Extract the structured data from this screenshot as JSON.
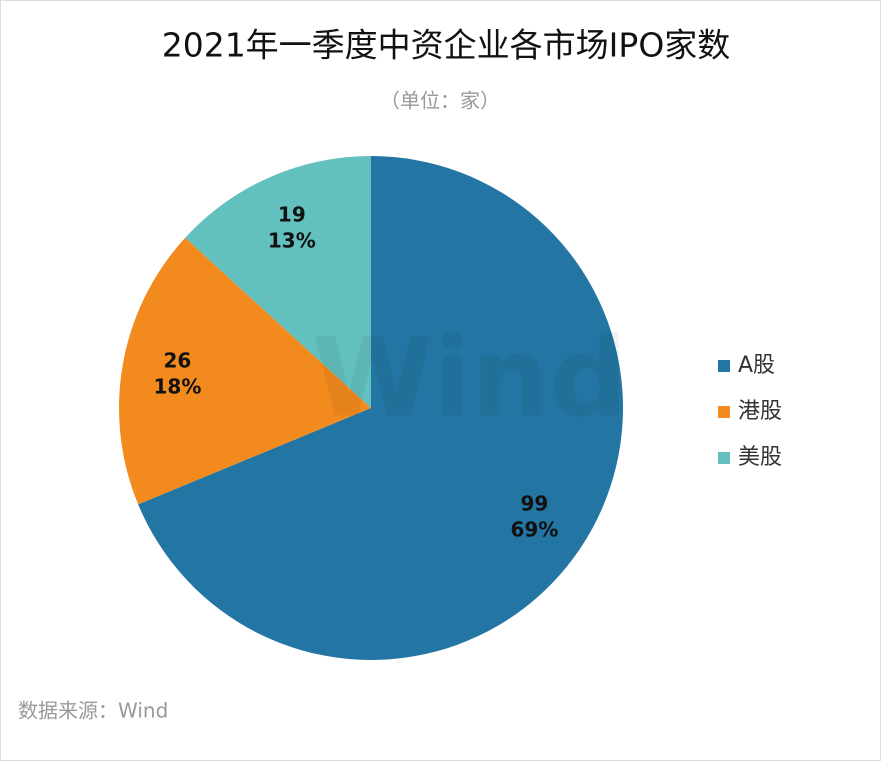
{
  "chart_data": {
    "type": "pie",
    "title": "2021年一季度中资企业各市场IPO家数",
    "subtitle": "（单位：家）",
    "categories": [
      "A股",
      "港股",
      "美股"
    ],
    "values": [
      99,
      26,
      19
    ],
    "percent_labels": [
      "69%",
      "18%",
      "13%"
    ],
    "colors": [
      "#2376a3",
      "#f28a1e",
      "#62c0be"
    ],
    "legend": "right",
    "watermark": "Wind",
    "source": "数据来源：Wind"
  }
}
